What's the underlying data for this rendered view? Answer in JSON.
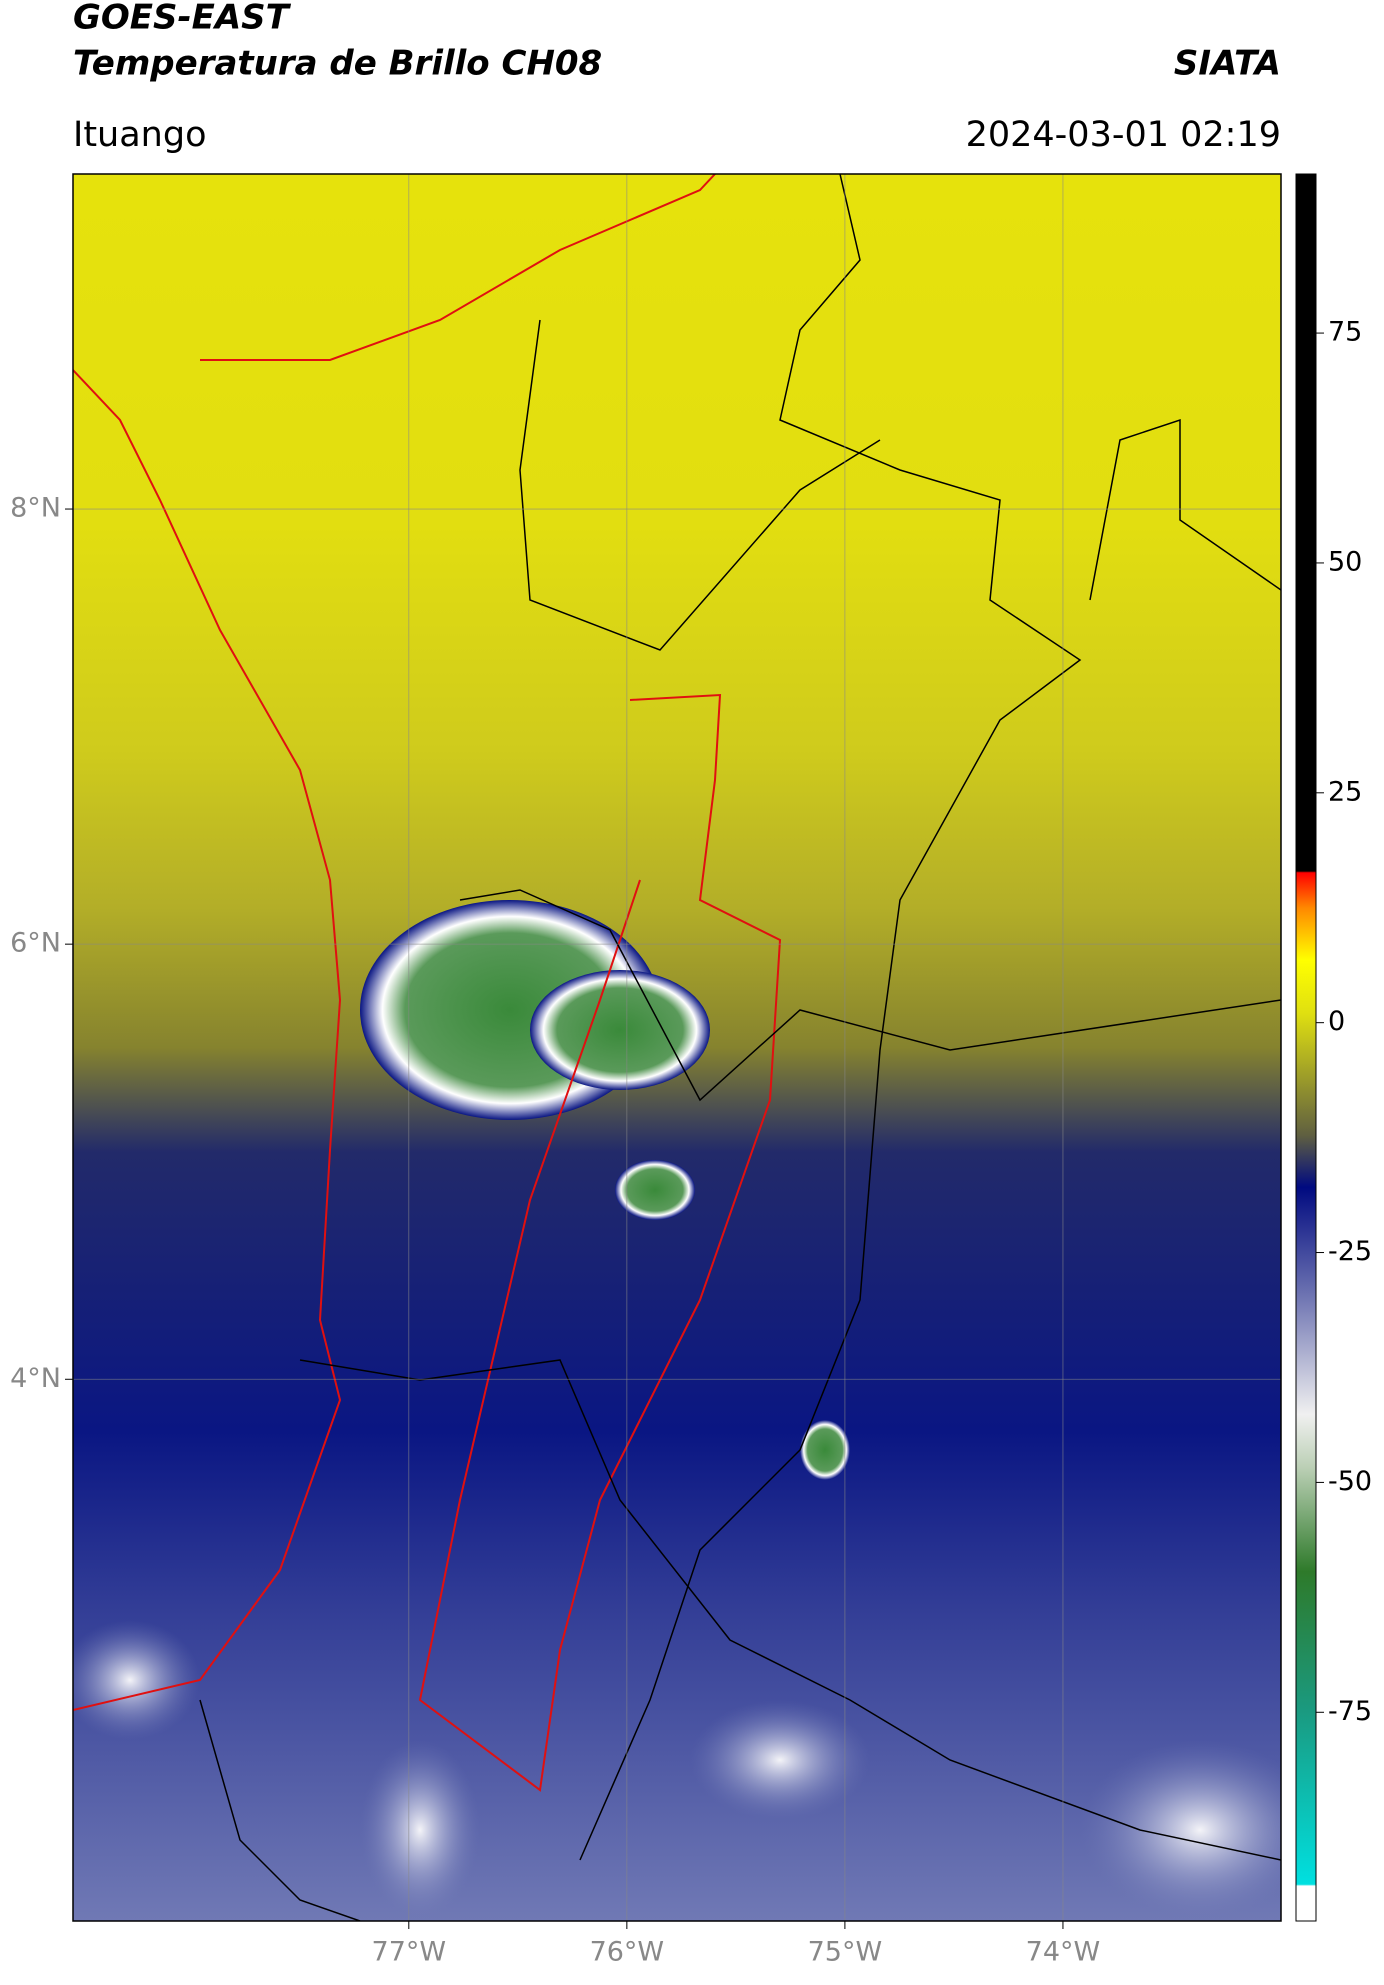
{
  "header": {
    "title": "GOES-EAST",
    "subtitle": "Temperatura de Brillo CH08",
    "source": "SIATA",
    "location": "Ituango",
    "timestamp": "2024-03-01 02:19"
  },
  "map": {
    "xlim": [
      -78.54,
      -73.0
    ],
    "ylim": [
      1.51,
      9.54
    ],
    "xticks": [
      {
        "value": -77,
        "label": "77°W"
      },
      {
        "value": -76,
        "label": "76°W"
      },
      {
        "value": -75,
        "label": "75°W"
      },
      {
        "value": -74,
        "label": "74°W"
      }
    ],
    "yticks": [
      {
        "value": 8,
        "label": "8°N"
      },
      {
        "value": 6,
        "label": "6°N"
      },
      {
        "value": 4,
        "label": "4°N"
      }
    ],
    "grid": true
  },
  "colorbar": {
    "lim": [
      -97.7,
      92.3
    ],
    "ticks": [
      75,
      50,
      25,
      0,
      -25,
      -50,
      -75
    ]
  }
}
